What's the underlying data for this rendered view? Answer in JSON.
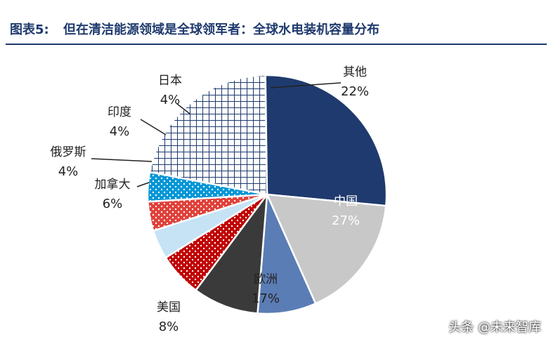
{
  "figure": {
    "label": "图表5:",
    "title": "但在清洁能源领域是全球领军者：全球水电装机容量分布"
  },
  "watermark": "头条 @未来智库",
  "chart_data": {
    "type": "pie",
    "title": "全球水电装机容量分布",
    "unit": "%",
    "slices": [
      {
        "label": "其他",
        "value": 22,
        "color": "#ffffff",
        "pattern": "grid",
        "pattern_color": "#1f3a6e"
      },
      {
        "label": "中国",
        "value": 27,
        "color": "#1f3a6e",
        "pattern": "solid"
      },
      {
        "label": "欧洲",
        "value": 17,
        "color": "#c8c8c8",
        "pattern": "solid"
      },
      {
        "label": "美国",
        "value": 8,
        "color": "#5b7db5",
        "pattern": "solid"
      },
      {
        "label": "",
        "value": 9,
        "color": "#3a3a3a",
        "pattern": "solid"
      },
      {
        "label": "加拿大",
        "value": 6,
        "color": "#c00000",
        "pattern": "dots",
        "pattern_color": "#ffffff"
      },
      {
        "label": "俄罗斯",
        "value": 4,
        "color": "#c5e3f5",
        "pattern": "solid"
      },
      {
        "label": "印度",
        "value": 4,
        "color": "#e0403a",
        "pattern": "dots",
        "pattern_color": "#ffffff"
      },
      {
        "label": "日本",
        "value": 4,
        "color": "#0096d6",
        "pattern": "dots",
        "pattern_color": "#ffffff"
      }
    ]
  }
}
